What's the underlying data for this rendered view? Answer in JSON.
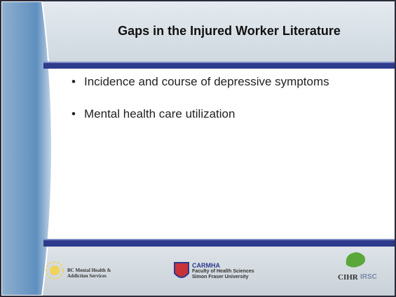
{
  "slide": {
    "title": "Gaps in the Injured Worker Literature",
    "bullets": [
      "Incidence and course of depressive symptoms",
      "Mental health care utilization"
    ],
    "logos": {
      "bcmhas": "BC Mental Health & Addiction Services",
      "carmha": "CARMHA",
      "carmha_line1": "Faculty of Health Sciences",
      "carmha_line2": "Simon Fraser University",
      "cihr": "CIHR",
      "irsc": "IRSC"
    }
  }
}
